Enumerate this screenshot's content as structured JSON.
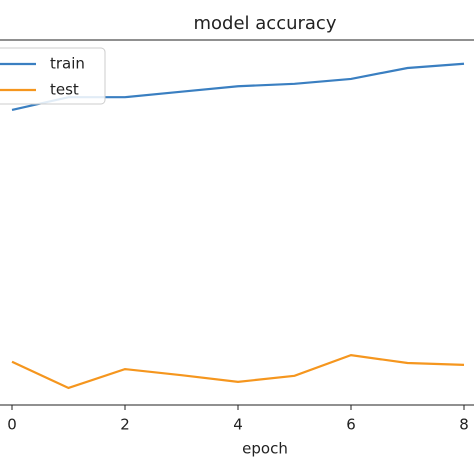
{
  "chart_data": {
    "type": "line",
    "title": "model accuracy",
    "x_label": "epoch",
    "x": [
      0,
      1,
      2,
      3,
      4,
      5,
      6,
      7,
      8
    ],
    "series": [
      {
        "name": "train",
        "color": "#3a7fc1",
        "values": [
          0.685,
          0.706,
          0.706,
          0.715,
          0.724,
          0.728,
          0.736,
          0.754,
          0.761
        ]
      },
      {
        "name": "test",
        "color": "#f5961e",
        "values": [
          0.271,
          0.228,
          0.259,
          0.249,
          0.238,
          0.248,
          0.282,
          0.269,
          0.266
        ]
      }
    ],
    "xlim": [
      -0.4,
      8.4
    ],
    "xticks": [
      0,
      2,
      4,
      6,
      8
    ],
    "ylim": [
      0.2,
      0.8
    ],
    "legend": "upper left"
  }
}
